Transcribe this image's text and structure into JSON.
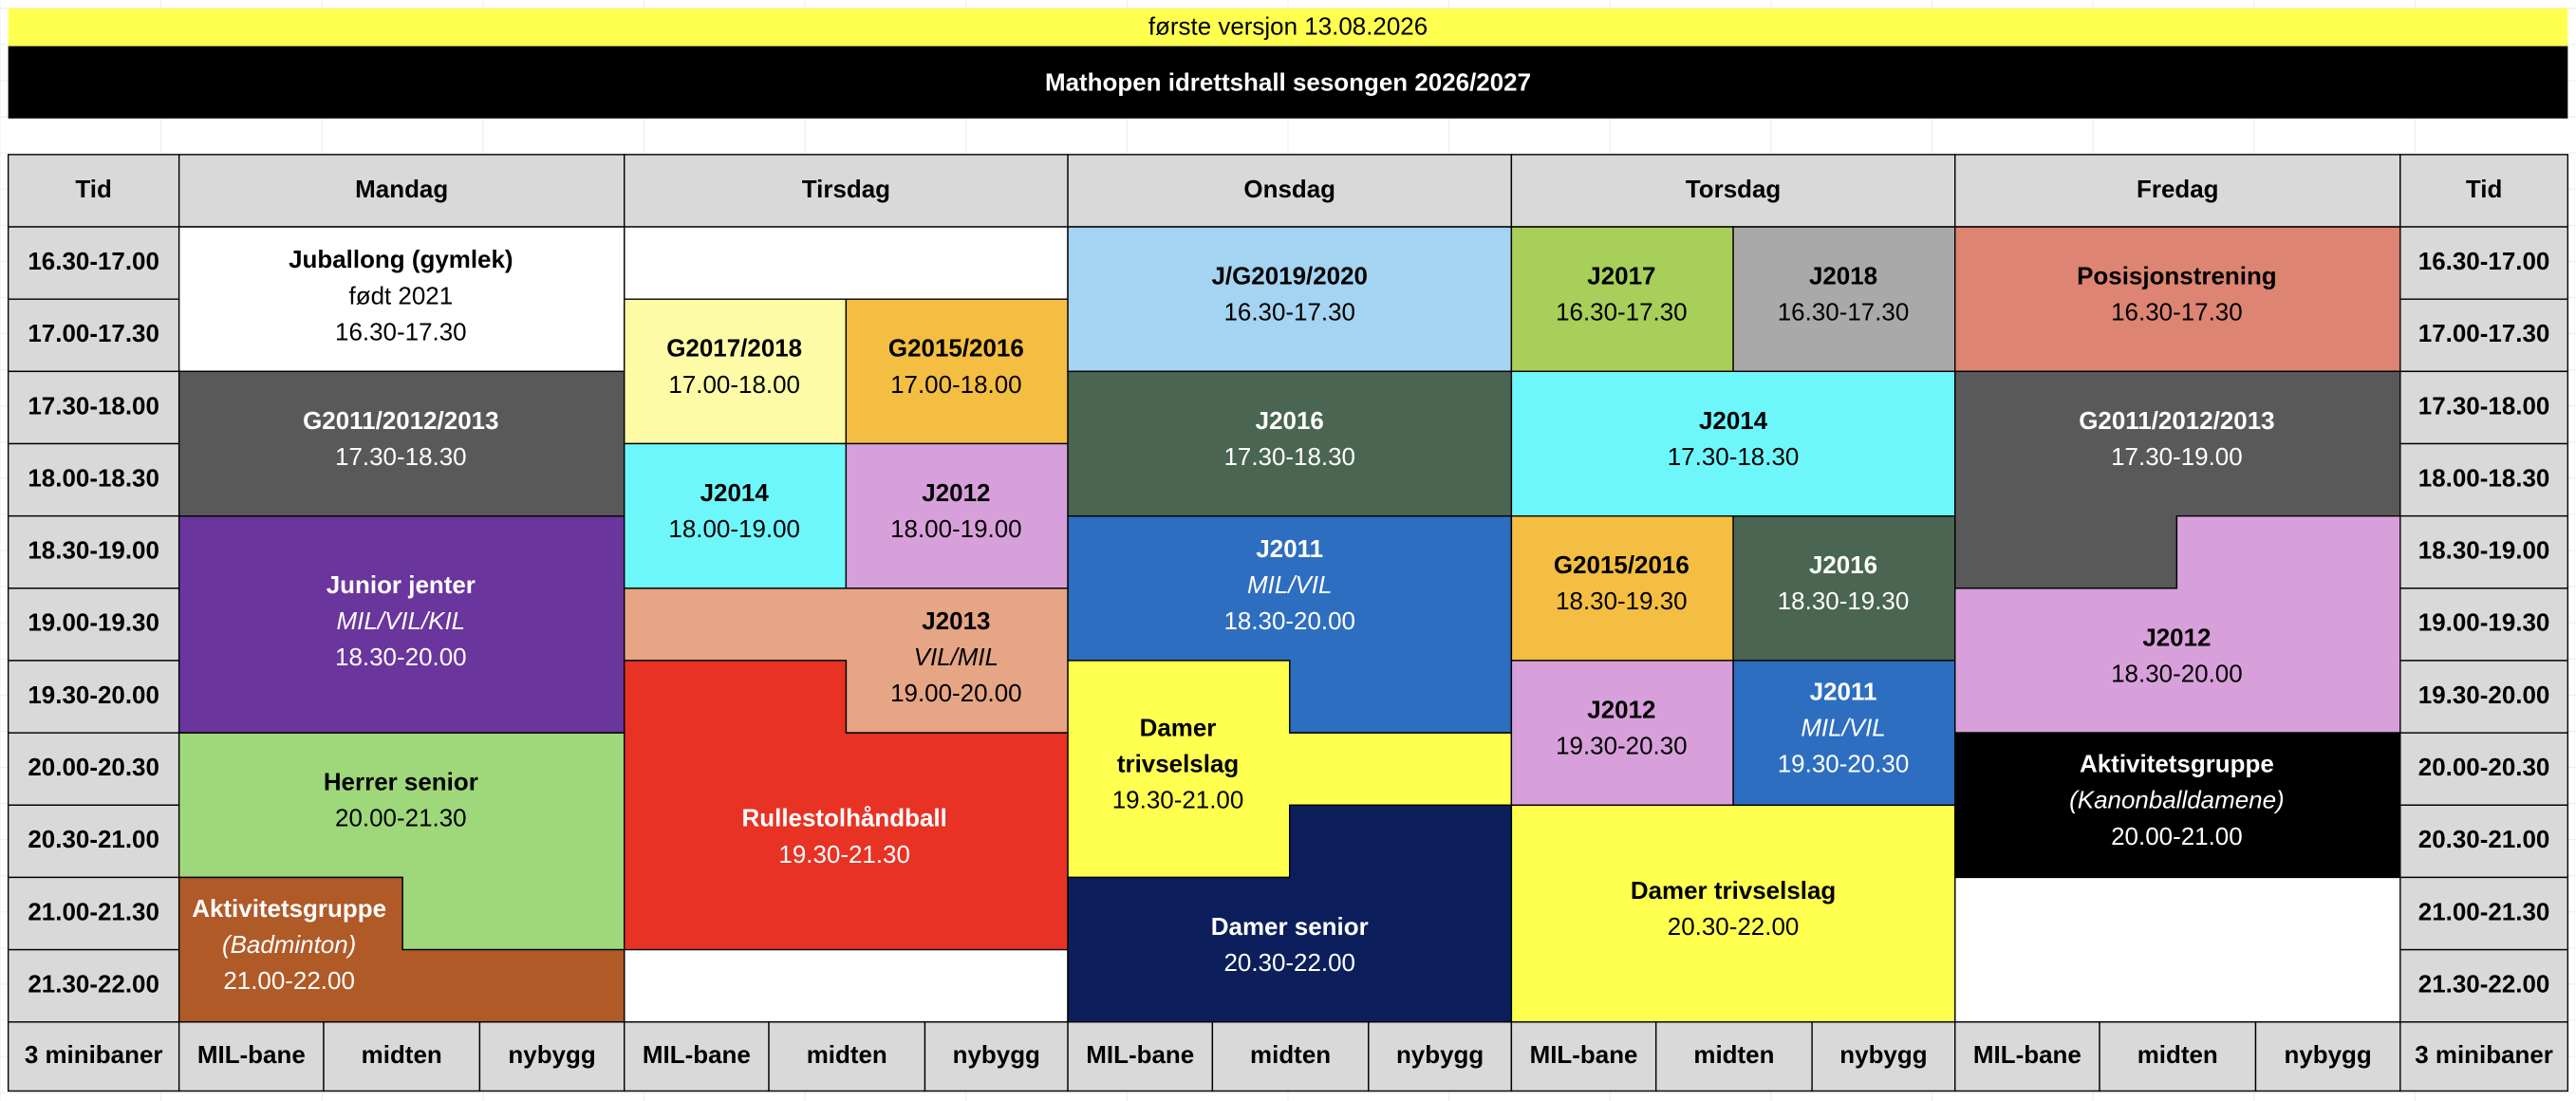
{
  "banner": "første versjon 13.08.2026",
  "title": "Mathopen idrettshall sesongen 2026/2027",
  "header": [
    "Tid",
    "Mandag",
    "Tirsdag",
    "Onsdag",
    "Torsdag",
    "Fredag",
    "Tid"
  ],
  "times": [
    "16.30-17.00",
    "17.00-17.30",
    "17.30-18.00",
    "18.00-18.30",
    "18.30-19.00",
    "19.00-19.30",
    "19.30-20.00",
    "20.00-20.30",
    "20.30-21.00",
    "21.00-21.30",
    "21.30-22.00"
  ],
  "footer": {
    "courts_label": "3 minibaner",
    "courts": [
      "MIL-bane",
      "midten",
      "nybygg"
    ]
  },
  "blocks": [
    {
      "lines": [
        "Juballong (gymlek)",
        "født 2021",
        "16.30-17.30"
      ]
    },
    {
      "lines": [
        "G2011/2012/2013",
        "17.30-18.30"
      ]
    },
    {
      "lines": [
        "Junior jenter",
        "MIL/VIL/KIL",
        "18.30-20.00"
      ]
    },
    {
      "lines": [
        "Herrer senior",
        "20.00-21.30"
      ]
    },
    {
      "lines": [
        "Aktivitetsgruppe",
        "(Badminton)",
        "21.00-22.00"
      ]
    },
    {
      "lines": [
        "G2017/2018",
        "17.00-18.00"
      ]
    },
    {
      "lines": [
        "G2015/2016",
        "17.00-18.00"
      ]
    },
    {
      "lines": [
        "J2014",
        "18.00-19.00"
      ]
    },
    {
      "lines": [
        "J2012",
        "18.00-19.00"
      ]
    },
    {
      "lines": [
        "J2013",
        "VIL/MIL",
        "19.00-20.00"
      ]
    },
    {
      "lines": [
        "Rullestolhåndball",
        "19.30-21.30"
      ]
    },
    {
      "lines": [
        "J/G2019/2020",
        "16.30-17.30"
      ]
    },
    {
      "lines": [
        "J2016",
        "17.30-18.30"
      ]
    },
    {
      "lines": [
        "J2011",
        "MIL/VIL",
        "18.30-20.00"
      ]
    },
    {
      "lines": [
        "Damer",
        "trivselslag",
        "19.30-21.00"
      ]
    },
    {
      "lines": [
        "Damer senior",
        "20.30-22.00"
      ]
    },
    {
      "lines": [
        "J2017",
        "16.30-17.30"
      ]
    },
    {
      "lines": [
        "J2018",
        "16.30-17.30"
      ]
    },
    {
      "lines": [
        "J2014",
        "17.30-18.30"
      ]
    },
    {
      "lines": [
        "G2015/2016",
        "18.30-19.30"
      ]
    },
    {
      "lines": [
        "J2016",
        "18.30-19.30"
      ]
    },
    {
      "lines": [
        "J2012",
        "19.30-20.30"
      ]
    },
    {
      "lines": [
        "J2011",
        "MIL/VIL",
        "19.30-20.30"
      ]
    },
    {
      "lines": [
        "Damer trivselslag",
        "20.30-22.00"
      ]
    },
    {
      "lines": [
        "Posisjonstrening",
        "16.30-17.30"
      ]
    },
    {
      "lines": [
        "G2011/2012/2013",
        "17.30-19.00"
      ]
    },
    {
      "lines": [
        "J2012",
        "18.30-20.00"
      ]
    },
    {
      "lines": [
        "Aktivitetsgruppe",
        "(Kanonballdamene)",
        "20.00-21.00"
      ]
    }
  ]
}
